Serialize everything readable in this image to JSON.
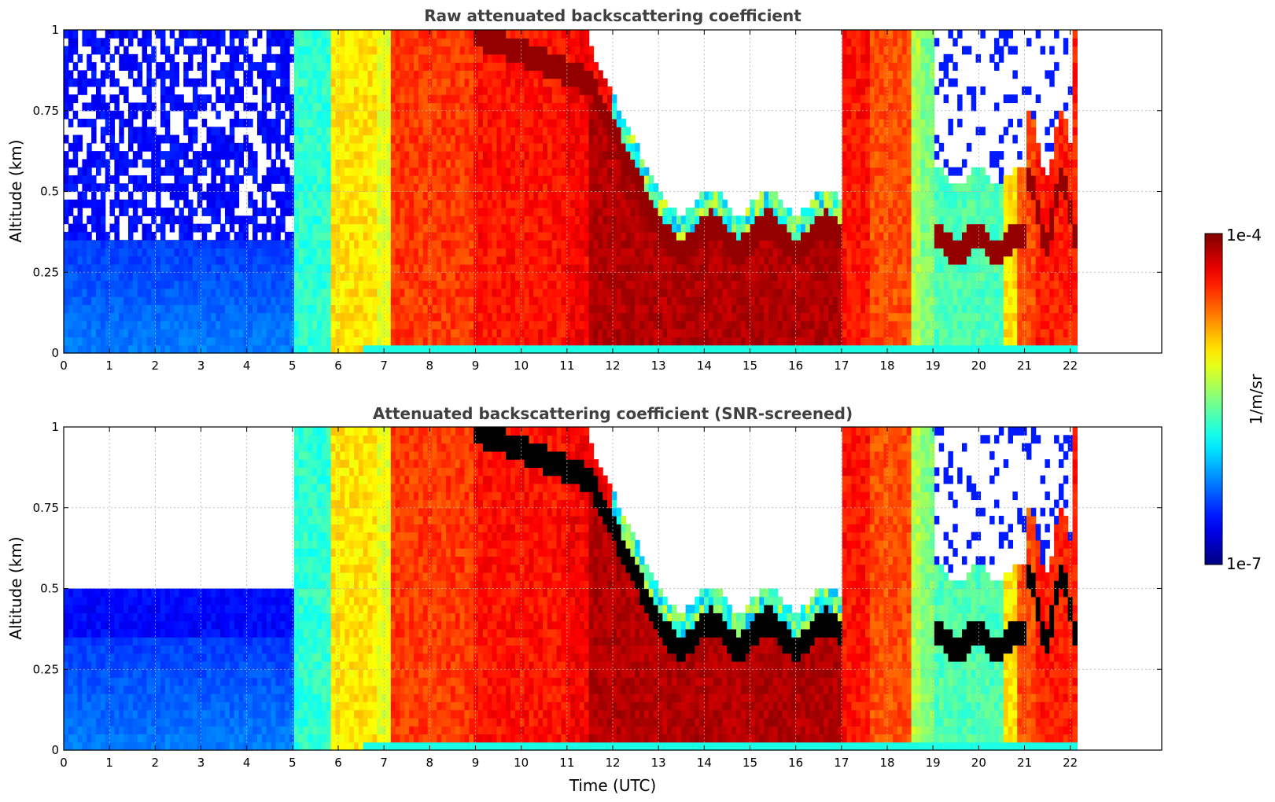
{
  "chart_data": [
    {
      "type": "heatmap",
      "title": "Raw attenuated backscattering coefficient",
      "xlabel": "",
      "ylabel": "Altitude (km)",
      "xlim": [
        0,
        24
      ],
      "ylim": [
        0,
        1
      ],
      "x_ticks": [
        "0",
        "1",
        "2",
        "3",
        "4",
        "5",
        "6",
        "7",
        "8",
        "9",
        "10",
        "11",
        "12",
        "13",
        "14",
        "15",
        "16",
        "17",
        "18",
        "19",
        "20",
        "21",
        "22"
      ],
      "y_ticks": [
        "0",
        "0.25",
        "0.5",
        "0.75",
        "1"
      ],
      "grid": true,
      "screened": false
    },
    {
      "type": "heatmap",
      "title": "Attenuated backscattering coefficient (SNR-screened)",
      "xlabel": "Time (UTC)",
      "ylabel": "Altitude (km)",
      "xlim": [
        0,
        24
      ],
      "ylim": [
        0,
        1
      ],
      "x_ticks": [
        "0",
        "1",
        "2",
        "3",
        "4",
        "5",
        "6",
        "7",
        "8",
        "9",
        "10",
        "11",
        "12",
        "13",
        "14",
        "15",
        "16",
        "17",
        "18",
        "19",
        "20",
        "21",
        "22"
      ],
      "y_ticks": [
        "0",
        "0.25",
        "0.5",
        "0.75",
        "1"
      ],
      "grid": true,
      "screened": true
    }
  ],
  "colorbar": {
    "label": "1/m/sr",
    "max_label": "1e-4",
    "min_label": "1e-7",
    "scale": "log",
    "colormap": "jet"
  },
  "data_end_hour": 22.15
}
